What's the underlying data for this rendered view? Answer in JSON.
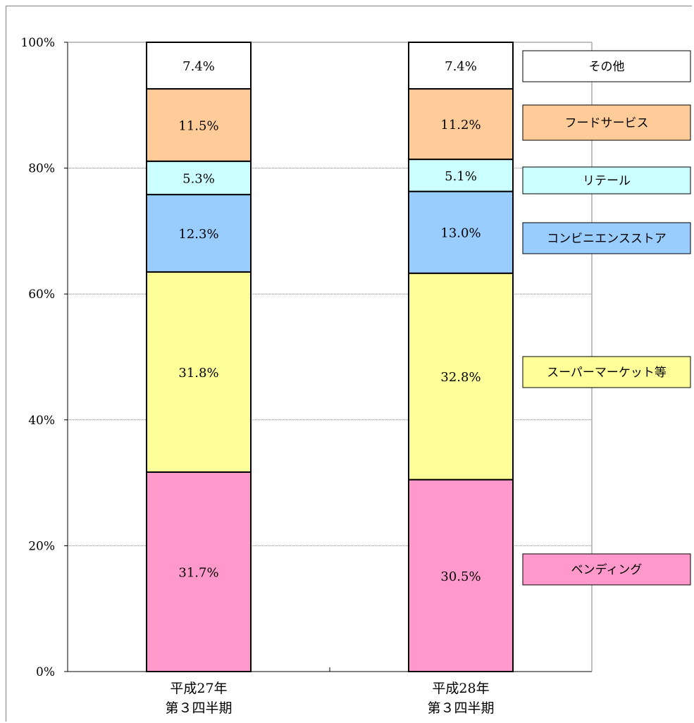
{
  "chart_data": {
    "type": "bar",
    "stacked": true,
    "percent": true,
    "title": "",
    "xlabel": "",
    "ylabel": "",
    "ylim": [
      0,
      100
    ],
    "yticks": [
      "0%",
      "20%",
      "40%",
      "60%",
      "80%",
      "100%"
    ],
    "grid": true,
    "legend_position": "right",
    "categories": [
      [
        "平成27年",
        "第３四半期"
      ],
      [
        "平成28年",
        "第３四半期"
      ]
    ],
    "series": [
      {
        "name": "ベンディング",
        "color": "#ff99cc",
        "values": [
          31.7,
          30.5
        ],
        "labels": [
          "31.7%",
          "30.5%"
        ]
      },
      {
        "name": "スーパーマーケット等",
        "color": "#ffff99",
        "values": [
          31.8,
          32.8
        ],
        "labels": [
          "31.8%",
          "32.8%"
        ]
      },
      {
        "name": "コンビニエンスストア",
        "color": "#99ccff",
        "values": [
          12.3,
          13.0
        ],
        "labels": [
          "12.3%",
          "13.0%"
        ]
      },
      {
        "name": "リテール",
        "color": "#ccffff",
        "values": [
          5.3,
          5.1
        ],
        "labels": [
          "5.3%",
          "5.1%"
        ]
      },
      {
        "name": "フードサービス",
        "color": "#ffcc99",
        "values": [
          11.5,
          11.2
        ],
        "labels": [
          "11.5%",
          "11.2%"
        ]
      },
      {
        "name": "その他",
        "color": "#ffffff",
        "values": [
          7.4,
          7.4
        ],
        "labels": [
          "7.4%",
          "7.4%"
        ]
      }
    ]
  }
}
